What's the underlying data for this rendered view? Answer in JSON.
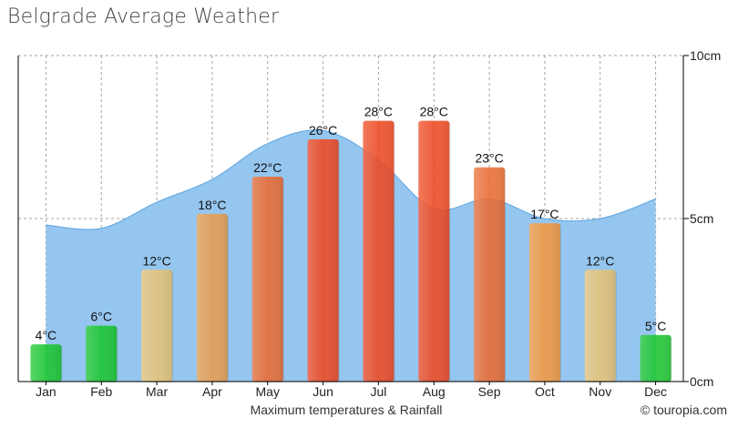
{
  "title": "Belgrade Average Weather",
  "caption": "Maximum temperatures & Rainfall",
  "credit": "touropia.com",
  "credit_icon": "copyright-icon",
  "colors": {
    "rain_area": "#8fc3ee",
    "rain_line": "#5aa4e0",
    "cold": "#1bc830",
    "mild": "#e8c67a",
    "warm": "#e9a052",
    "hot": "#ec6d33",
    "very_hot": "#f04a22",
    "grid": "#9a9a9a"
  },
  "chart_data": {
    "type": "bar",
    "title": "Belgrade Average Weather",
    "categories": [
      "Jan",
      "Feb",
      "Mar",
      "Apr",
      "May",
      "Jun",
      "Jul",
      "Aug",
      "Sep",
      "Oct",
      "Nov",
      "Dec"
    ],
    "series": [
      {
        "name": "Maximum temperatures",
        "unit": "°C",
        "values": [
          4,
          6,
          12,
          18,
          22,
          26,
          28,
          28,
          23,
          17,
          12,
          5
        ],
        "labels": [
          "4°C",
          "6°C",
          "12°C",
          "18°C",
          "22°C",
          "26°C",
          "28°C",
          "28°C",
          "23°C",
          "17°C",
          "12°C",
          "5°C"
        ],
        "colors": [
          "#1bc830",
          "#1bc830",
          "#e8c67a",
          "#e9a052",
          "#ec6d33",
          "#f04a22",
          "#f04a22",
          "#f04a22",
          "#ec6d33",
          "#f59b42",
          "#e8c67a",
          "#1bc830"
        ]
      },
      {
        "name": "Rainfall",
        "unit": "cm",
        "type": "area",
        "values": [
          4.8,
          4.7,
          5.5,
          6.2,
          7.3,
          7.7,
          6.8,
          5.3,
          5.6,
          5.0,
          5.0,
          5.6
        ]
      }
    ],
    "y2_axis": {
      "ticks": [
        "0cm",
        "5cm",
        "10cm"
      ],
      "tick_values": [
        0,
        5,
        10
      ],
      "ylim": [
        0,
        10
      ]
    },
    "temp_ylim": [
      0,
      35
    ],
    "grid": true,
    "legend": "none"
  }
}
